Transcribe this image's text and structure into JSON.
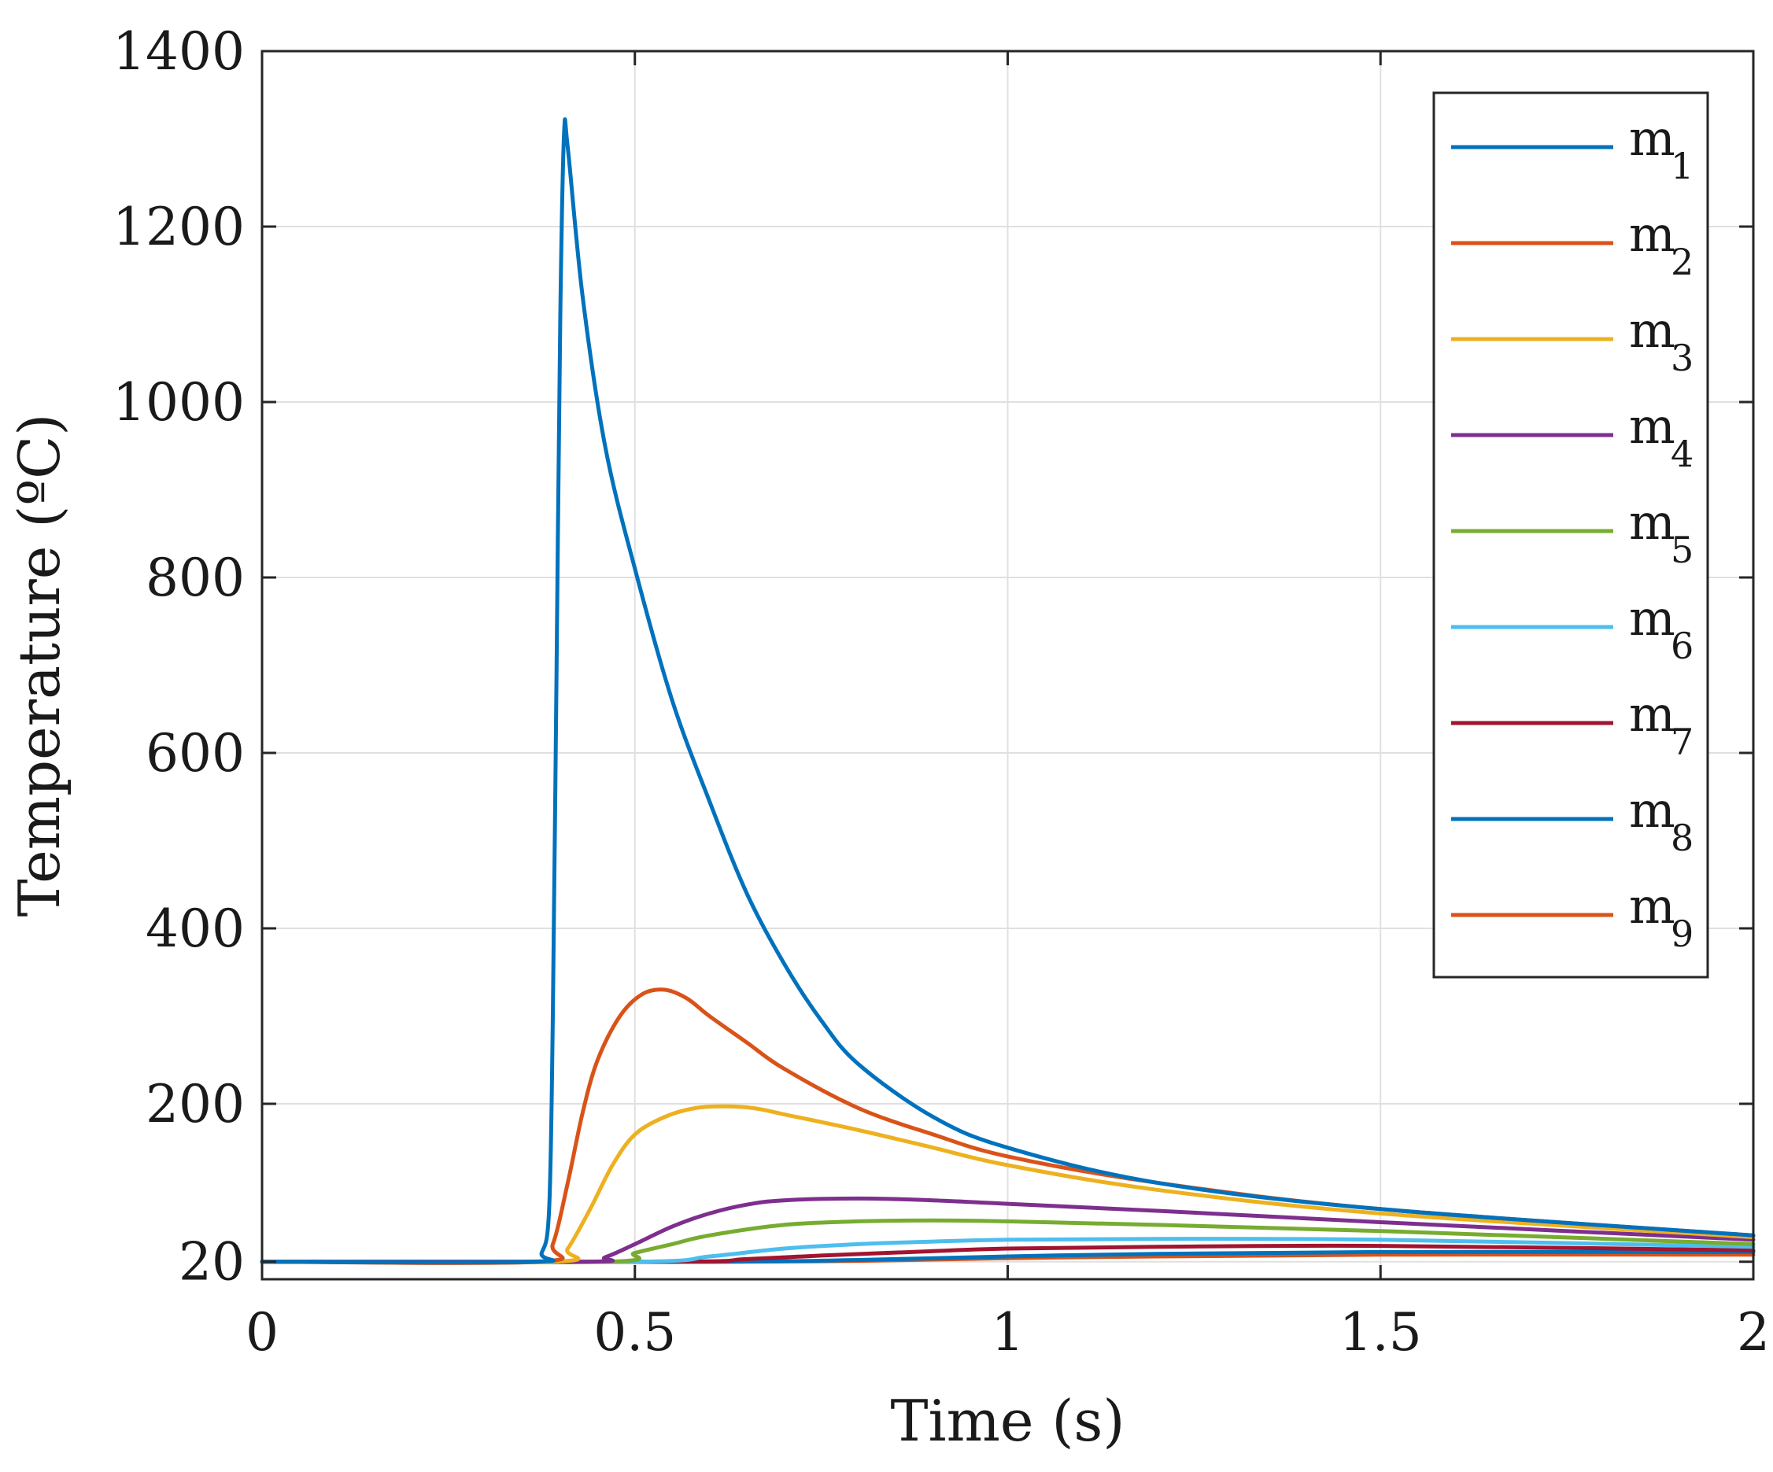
{
  "chart_data": {
    "type": "line",
    "title": "",
    "xlabel": "Time (s)",
    "ylabel": "Temperature (ºC)",
    "xlim": [
      0,
      2
    ],
    "ylim": [
      0,
      1400
    ],
    "xticks": [
      0,
      0.5,
      1,
      1.5,
      2
    ],
    "xtick_labels": [
      "0",
      "0.5",
      "1",
      "1.5",
      "2"
    ],
    "yticks": [
      20,
      200,
      400,
      600,
      800,
      1000,
      1200,
      1400
    ],
    "ytick_labels": [
      "20",
      "200",
      "400",
      "600",
      "800",
      "1000",
      "1200",
      "1400"
    ],
    "grid": true,
    "legend_position": "top-right",
    "series": [
      {
        "name": "m",
        "sub": "1",
        "color": "#0072BD",
        "x": [
          0,
          0.36,
          0.375,
          0.385,
          0.39,
          0.395,
          0.4,
          0.405,
          0.41,
          0.43,
          0.46,
          0.5,
          0.55,
          0.6,
          0.65,
          0.7,
          0.75,
          0.8,
          0.9,
          1.0,
          1.2,
          1.5,
          2.0
        ],
        "values": [
          20,
          20,
          30,
          80,
          300,
          700,
          1100,
          1305,
          1290,
          1120,
          950,
          810,
          660,
          545,
          440,
          360,
          295,
          245,
          185,
          150,
          110,
          80,
          50
        ]
      },
      {
        "name": "m",
        "sub": "2",
        "color": "#D95319",
        "x": [
          0,
          0.37,
          0.39,
          0.41,
          0.43,
          0.45,
          0.48,
          0.51,
          0.54,
          0.57,
          0.6,
          0.65,
          0.7,
          0.8,
          0.9,
          1.0,
          1.2,
          1.5,
          2.0
        ],
        "values": [
          20,
          20,
          40,
          110,
          190,
          250,
          300,
          325,
          330,
          320,
          300,
          270,
          240,
          195,
          165,
          140,
          110,
          80,
          50
        ]
      },
      {
        "name": "m",
        "sub": "3",
        "color": "#EDB120",
        "x": [
          0,
          0.39,
          0.41,
          0.44,
          0.47,
          0.5,
          0.54,
          0.58,
          0.62,
          0.66,
          0.7,
          0.8,
          0.9,
          1.0,
          1.2,
          1.5,
          2.0
        ],
        "values": [
          20,
          20,
          35,
          80,
          130,
          165,
          185,
          195,
          197,
          195,
          188,
          170,
          150,
          130,
          102,
          75,
          48
        ]
      },
      {
        "name": "m",
        "sub": "4",
        "color": "#7E2F8E",
        "x": [
          0,
          0.43,
          0.46,
          0.5,
          0.55,
          0.6,
          0.65,
          0.7,
          0.8,
          0.9,
          1.0,
          1.2,
          1.5,
          2.0
        ],
        "values": [
          20,
          20,
          25,
          40,
          60,
          75,
          85,
          90,
          92,
          90,
          86,
          78,
          65,
          45
        ]
      },
      {
        "name": "m",
        "sub": "5",
        "color": "#77AC30",
        "x": [
          0,
          0.46,
          0.5,
          0.55,
          0.6,
          0.7,
          0.8,
          0.9,
          1.0,
          1.2,
          1.5,
          2.0
        ],
        "values": [
          20,
          20,
          30,
          40,
          50,
          62,
          66,
          67,
          66,
          62,
          55,
          40
        ]
      },
      {
        "name": "m",
        "sub": "6",
        "color": "#4DBEEE",
        "x": [
          0,
          0.5,
          0.6,
          0.7,
          0.8,
          0.9,
          1.0,
          1.2,
          1.5,
          2.0
        ],
        "values": [
          20,
          20,
          26,
          35,
          40,
          43,
          45,
          46,
          45,
          37
        ]
      },
      {
        "name": "m",
        "sub": "7",
        "color": "#A2142F",
        "x": [
          0,
          0.55,
          0.65,
          0.75,
          0.9,
          1.0,
          1.2,
          1.5,
          2.0
        ],
        "values": [
          20,
          20,
          23,
          27,
          32,
          35,
          37,
          38,
          33
        ]
      },
      {
        "name": "m",
        "sub": "8",
        "color": "#0072BD",
        "x": [
          0,
          0.6,
          0.8,
          1.0,
          1.2,
          1.5,
          2.0
        ],
        "values": [
          20,
          20,
          22,
          26,
          29,
          31,
          31
        ]
      },
      {
        "name": "m",
        "sub": "9",
        "color": "#D95319",
        "x": [
          0,
          0.6,
          0.8,
          1.0,
          1.2,
          1.5,
          2.0
        ],
        "values": [
          20,
          20,
          21,
          24,
          26,
          28,
          28
        ]
      }
    ]
  }
}
